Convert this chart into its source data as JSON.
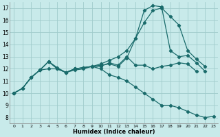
{
  "xlabel": "Humidex (Indice chaleur)",
  "bg_color": "#c8eaea",
  "grid_color": "#a0cccc",
  "line_color": "#1a6b6b",
  "xlim": [
    -0.5,
    23.5
  ],
  "ylim": [
    7.5,
    17.5
  ],
  "xticks": [
    0,
    1,
    2,
    3,
    4,
    5,
    6,
    7,
    8,
    9,
    10,
    11,
    12,
    13,
    14,
    15,
    16,
    17,
    18,
    19,
    20,
    21,
    22,
    23
  ],
  "yticks": [
    8,
    9,
    10,
    11,
    12,
    13,
    14,
    15,
    16,
    17
  ],
  "series": [
    {
      "x": [
        0,
        1,
        2,
        3,
        4,
        5,
        6,
        7,
        8,
        9,
        10,
        11,
        12,
        13,
        14,
        15,
        16,
        17,
        18,
        19,
        20,
        21
      ],
      "y": [
        10.0,
        10.4,
        11.3,
        11.9,
        12.6,
        12.0,
        11.7,
        12.0,
        12.1,
        12.2,
        12.2,
        12.5,
        12.3,
        13.0,
        12.3,
        12.3,
        12.0,
        12.2,
        12.3,
        12.5,
        12.4,
        11.8
      ]
    },
    {
      "x": [
        0,
        1,
        2,
        3,
        4,
        5,
        6,
        7,
        8,
        9,
        10,
        11,
        12,
        13,
        14,
        15,
        16,
        17,
        18,
        19,
        20,
        21,
        22
      ],
      "y": [
        10.0,
        10.4,
        11.3,
        11.9,
        12.0,
        12.0,
        11.7,
        11.9,
        12.0,
        12.2,
        12.4,
        12.7,
        13.0,
        13.5,
        14.5,
        15.8,
        16.8,
        17.0,
        16.3,
        15.6,
        13.5,
        12.8,
        12.2
      ]
    },
    {
      "x": [
        0,
        1,
        2,
        3,
        4,
        5,
        6,
        7,
        8,
        9,
        10,
        11,
        12,
        13,
        14,
        15,
        16,
        17,
        18,
        19,
        20,
        21,
        22
      ],
      "y": [
        10.0,
        10.4,
        11.3,
        11.9,
        12.6,
        12.1,
        11.7,
        12.0,
        12.1,
        12.2,
        12.3,
        12.4,
        12.2,
        12.9,
        14.5,
        16.8,
        17.2,
        17.1,
        13.5,
        13.0,
        13.1,
        12.5,
        11.8
      ]
    },
    {
      "x": [
        0,
        1,
        2,
        3,
        4,
        5,
        6,
        7,
        8,
        9,
        10,
        11,
        12,
        13,
        14,
        15,
        16,
        17,
        18,
        19,
        20,
        21,
        22,
        23
      ],
      "y": [
        10.0,
        10.4,
        11.3,
        11.9,
        12.6,
        12.0,
        11.7,
        12.0,
        12.1,
        12.2,
        12.0,
        11.5,
        11.3,
        11.0,
        10.5,
        10.0,
        9.5,
        9.0,
        9.0,
        8.8,
        8.5,
        8.2,
        8.0,
        8.1
      ]
    }
  ]
}
